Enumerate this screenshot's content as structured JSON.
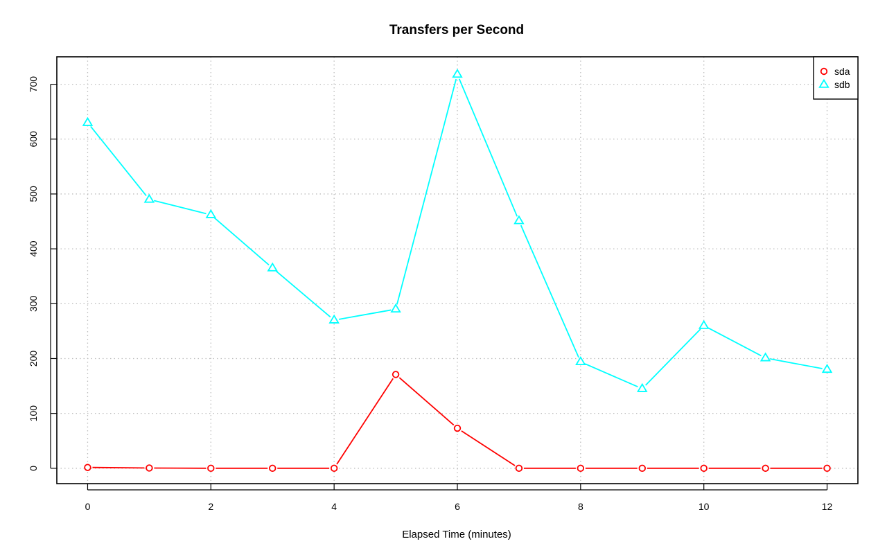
{
  "chart_data": {
    "type": "line",
    "title": "Transfers per Second",
    "xlabel": "Elapsed Time (minutes)",
    "ylabel": "",
    "x": [
      0,
      1,
      2,
      3,
      4,
      5,
      6,
      7,
      8,
      9,
      10,
      11,
      12
    ],
    "xlim": [
      -0.5,
      12.5
    ],
    "ylim": [
      -28,
      750
    ],
    "xticks": [
      0,
      2,
      4,
      6,
      8,
      10,
      12
    ],
    "yticks": [
      0,
      100,
      200,
      300,
      400,
      500,
      600,
      700
    ],
    "grid": true,
    "legend_position": "top-right",
    "series": [
      {
        "name": "sda",
        "color": "#ff0000",
        "marker": "circle",
        "values": [
          1.5,
          0.5,
          0,
          0,
          0,
          171,
          73,
          0,
          0,
          0,
          0,
          0,
          0
        ]
      },
      {
        "name": "sdb",
        "color": "#00ffff",
        "marker": "triangle",
        "values": [
          630,
          490,
          462,
          365,
          270,
          290,
          718,
          451,
          194,
          145,
          260,
          201,
          180
        ]
      }
    ]
  }
}
